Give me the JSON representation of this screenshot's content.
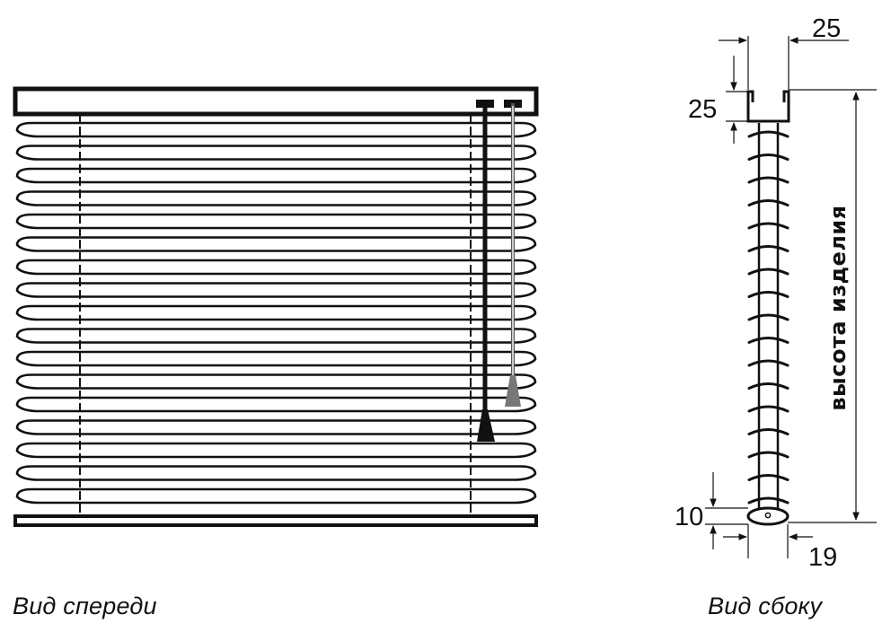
{
  "front_view": {
    "caption": "Вид спереди",
    "slat_count": 17
  },
  "side_view": {
    "caption": "Вид сбоку",
    "slat_count": 17,
    "dimensions": {
      "top_width": "25",
      "top_height": "25",
      "bottom_height": "10",
      "bottom_width": "19",
      "product_height_label": "высота изделия"
    }
  },
  "colors": {
    "line": "#111111",
    "cord_light": "#777777",
    "background": "#ffffff"
  }
}
